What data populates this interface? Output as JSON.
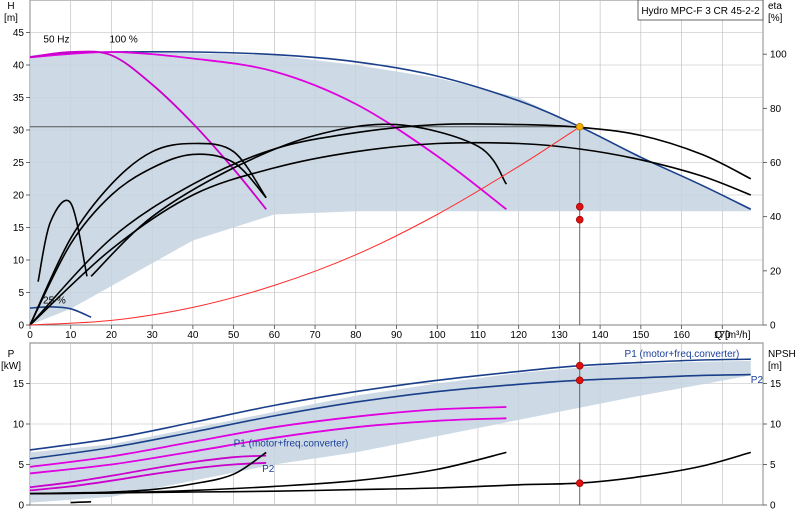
{
  "chart_data": [
    {
      "type": "line",
      "title": "Hydro MPC-F 3 CR 45-2-2",
      "y_label_top": "H",
      "y_unit": "[m]",
      "y2_label_top": "eta",
      "y2_unit": "[%]",
      "x_label": "Q [m³/h]",
      "xlim": [
        0,
        180
      ],
      "ylim": [
        0,
        50
      ],
      "y2lim": [
        0,
        120
      ],
      "x_ticks": [
        0,
        10,
        20,
        30,
        40,
        50,
        60,
        70,
        80,
        90,
        100,
        110,
        120,
        130,
        140,
        150,
        160,
        170
      ],
      "y_ticks": [
        0,
        5,
        10,
        15,
        20,
        25,
        30,
        35,
        40,
        45
      ],
      "y2_ticks": [
        0,
        20,
        40,
        60,
        80,
        100
      ],
      "grid": true,
      "annotations": [
        "50 Hz",
        "100 %",
        "25 %"
      ],
      "duty_point": {
        "x": 135,
        "y": 30.5
      },
      "operating_area": {
        "x": [
          0,
          10,
          25,
          40,
          60,
          80,
          100,
          120,
          140,
          160,
          177,
          177,
          160,
          140,
          120,
          100,
          80,
          60,
          40,
          20,
          10,
          0
        ],
        "y": [
          41.5,
          42.0,
          42.0,
          41.8,
          41.5,
          40.0,
          38.0,
          35.0,
          29.0,
          23.0,
          18.0,
          17.5,
          17.5,
          17.5,
          17.5,
          17.5,
          17.5,
          17.0,
          13.0,
          6.0,
          2.5,
          0
        ]
      },
      "series": [
        {
          "role": "H",
          "color": "#1a3f8a",
          "x": [
            0,
            10,
            20,
            40,
            60,
            80,
            100,
            120,
            135,
            150,
            165,
            177
          ],
          "y": [
            41.2,
            41.8,
            42.0,
            42.0,
            41.6,
            40.5,
            38.3,
            34.5,
            30.5,
            25.8,
            21.5,
            17.8
          ]
        },
        {
          "role": "H",
          "color": "#e000e0",
          "x": [
            0,
            20,
            40,
            60,
            80,
            100,
            117
          ],
          "y": [
            41.2,
            42.0,
            41.0,
            39.0,
            34.0,
            26.0,
            17.8
          ]
        },
        {
          "role": "H",
          "color": "#cc00cc",
          "x": [
            0,
            10,
            20,
            30,
            40,
            50,
            58
          ],
          "y": [
            41.2,
            42.0,
            41.5,
            37.0,
            31.0,
            24.0,
            17.8
          ]
        },
        {
          "role": "H",
          "color": "#1a3f8a",
          "x": [
            0,
            5,
            10,
            15
          ],
          "y": [
            2.6,
            2.8,
            2.5,
            1.2
          ]
        },
        {
          "role": "eta",
          "color": "#000000",
          "x": [
            0,
            20,
            40,
            60,
            80,
            100,
            120,
            135,
            150,
            165,
            177
          ],
          "y": [
            0,
            28,
            48,
            58,
            64,
            67,
            67,
            65,
            61,
            55,
            48
          ]
        },
        {
          "role": "eta",
          "color": "#000000",
          "x": [
            0,
            20,
            40,
            60,
            80,
            100,
            120,
            135,
            150,
            165,
            177
          ],
          "y": [
            0,
            32,
            52,
            65,
            71,
            74,
            74,
            73,
            70,
            63,
            54
          ]
        },
        {
          "role": "eta",
          "color": "#000000",
          "x": [
            0,
            10,
            20,
            30,
            40,
            50,
            58
          ],
          "y": [
            0,
            32,
            52,
            64,
            67,
            64,
            47
          ]
        },
        {
          "role": "eta",
          "color": "#000000",
          "x": [
            0,
            10,
            20,
            30,
            40,
            50,
            58
          ],
          "y": [
            0,
            30,
            48,
            58,
            63,
            60,
            47
          ]
        },
        {
          "role": "eta",
          "color": "#000000",
          "x": [
            15,
            30,
            50,
            70,
            90,
            110,
            117
          ],
          "y": [
            18,
            40,
            58,
            70,
            74,
            66,
            52
          ]
        },
        {
          "role": "eta",
          "color": "#000000",
          "x": [
            2,
            5,
            10,
            14
          ],
          "y": [
            16,
            38,
            45,
            18
          ]
        },
        {
          "role": "system",
          "color": "#ff2a2a",
          "x": [
            0,
            20,
            40,
            60,
            80,
            100,
            120,
            135
          ],
          "y": [
            0,
            0.7,
            2.7,
            6.1,
            10.8,
            17.0,
            24.4,
            30.5
          ]
        }
      ],
      "markers": [
        {
          "x": 135,
          "y": 30.5,
          "color": "#f5b000"
        },
        {
          "x": 135,
          "y": 18.2,
          "color": "#e01010"
        },
        {
          "x": 135,
          "y": 16.2,
          "color": "#e01010"
        }
      ]
    },
    {
      "type": "line",
      "y_label_top": "P",
      "y_unit": "[kW]",
      "y2_label_top": "NPSH",
      "y2_unit": "[m]",
      "xlim": [
        0,
        180
      ],
      "ylim": [
        0,
        20
      ],
      "y2lim": [
        0,
        20
      ],
      "y_ticks": [
        0,
        5,
        10,
        15
      ],
      "y2_ticks": [
        0,
        5,
        10,
        15
      ],
      "grid": true,
      "labels": [
        {
          "text": "P1 (motor+freq.converter)",
          "x": 146,
          "y": 18.0
        },
        {
          "text": "P2",
          "x": 177,
          "y": 14.8
        },
        {
          "text": "P1 (motor+freq.converter)",
          "x": 50,
          "y": 7.0
        },
        {
          "text": "P2",
          "x": 57,
          "y": 3.8
        }
      ],
      "operating_area": {
        "x": [
          0,
          20,
          40,
          60,
          80,
          100,
          120,
          140,
          160,
          177,
          177,
          150,
          120,
          100,
          80,
          60,
          40,
          20,
          0
        ],
        "y": [
          6.5,
          7.5,
          9.5,
          11.5,
          13.5,
          15.0,
          16.3,
          17.2,
          17.6,
          17.8,
          16.0,
          13.5,
          10.5,
          8.5,
          6.5,
          5.0,
          3.0,
          1.0,
          0.3
        ]
      },
      "series": [
        {
          "role": "P1",
          "color": "#1a3f8a",
          "x": [
            0,
            20,
            40,
            60,
            80,
            100,
            120,
            135,
            150,
            165,
            177
          ],
          "y": [
            6.8,
            8.2,
            10.2,
            12.3,
            14.0,
            15.4,
            16.5,
            17.2,
            17.6,
            17.9,
            18.0
          ]
        },
        {
          "role": "P2",
          "color": "#1a3f8a",
          "x": [
            0,
            20,
            40,
            60,
            80,
            100,
            120,
            135,
            150,
            165,
            177
          ],
          "y": [
            5.7,
            7.1,
            9.0,
            11.0,
            12.7,
            14.0,
            14.9,
            15.4,
            15.7,
            16.0,
            16.1
          ]
        },
        {
          "role": "P1",
          "color": "#e000e0",
          "x": [
            0,
            20,
            40,
            60,
            80,
            100,
            117
          ],
          "y": [
            4.7,
            6.0,
            7.8,
            9.6,
            10.9,
            11.8,
            12.1
          ]
        },
        {
          "role": "P2",
          "color": "#e000e0",
          "x": [
            0,
            20,
            40,
            60,
            80,
            100,
            117
          ],
          "y": [
            3.9,
            5.0,
            6.6,
            8.3,
            9.6,
            10.4,
            10.7
          ]
        },
        {
          "role": "P1",
          "color": "#cc00cc",
          "x": [
            0,
            10,
            20,
            30,
            40,
            50,
            58
          ],
          "y": [
            2.2,
            2.8,
            3.6,
            4.5,
            5.3,
            5.9,
            6.1
          ]
        },
        {
          "role": "P2",
          "color": "#cc00cc",
          "x": [
            0,
            10,
            20,
            30,
            40,
            50,
            58
          ],
          "y": [
            1.8,
            2.3,
            3.0,
            3.8,
            4.5,
            5.0,
            5.2
          ]
        },
        {
          "role": "NPSH",
          "color": "#000000",
          "x": [
            0,
            20,
            40,
            60,
            80,
            100,
            120,
            135,
            150,
            165,
            177
          ],
          "y": [
            1.4,
            1.5,
            1.6,
            1.7,
            1.9,
            2.1,
            2.5,
            2.7,
            3.5,
            4.8,
            6.5
          ]
        },
        {
          "role": "NPSH",
          "color": "#000000",
          "x": [
            0,
            20,
            40,
            60,
            80,
            100,
            117
          ],
          "y": [
            1.4,
            1.5,
            1.8,
            2.3,
            3.0,
            4.4,
            6.5
          ]
        },
        {
          "role": "NPSH",
          "color": "#000000",
          "x": [
            0,
            10,
            20,
            30,
            40,
            50,
            58
          ],
          "y": [
            1.4,
            1.5,
            1.6,
            1.9,
            2.6,
            3.8,
            6.5
          ]
        },
        {
          "role": "NPSH",
          "color": "#000000",
          "x": [
            10,
            15
          ],
          "y": [
            0.3,
            0.4
          ]
        }
      ],
      "markers": [
        {
          "x": 135,
          "y": 17.2,
          "color": "#e01010"
        },
        {
          "x": 135,
          "y": 15.4,
          "color": "#e01010"
        },
        {
          "x": 135,
          "y": 2.7,
          "color": "#e01010"
        }
      ]
    }
  ]
}
